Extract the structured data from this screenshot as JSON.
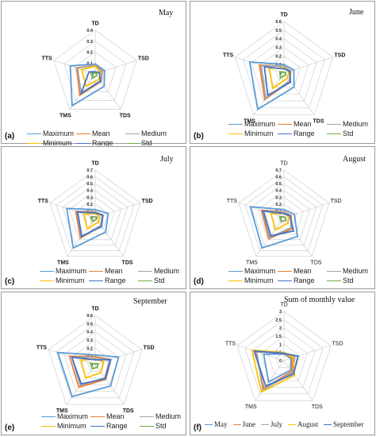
{
  "colors": {
    "Maximum": "#5b9bd5",
    "Mean": "#ed7d31",
    "Medium": "#a5a5a5",
    "Minimum": "#ffc000",
    "Range": "#4472c4",
    "Std": "#70ad47",
    "May": "#5b9bd5",
    "June": "#ed7d31",
    "July": "#a5a5a5",
    "August": "#ffc000",
    "September": "#4472c4"
  },
  "chart_data": [
    {
      "type": "radar",
      "panel_label": "(a)",
      "title": "May",
      "axes": [
        "TD",
        "TSD",
        "TDS",
        "TMS",
        "TTS"
      ],
      "rmax": 0.4,
      "ticks": [
        "0",
        "0.1",
        "0.2",
        "0.3",
        "0.4"
      ],
      "tick_bold": true,
      "series": [
        {
          "name": "Maximum",
          "values": [
            0.09,
            0.09,
            0.14,
            0.36,
            0.24
          ]
        },
        {
          "name": "Mean",
          "values": [
            0.08,
            0.07,
            0.09,
            0.24,
            0.18
          ]
        },
        {
          "name": "Medium",
          "values": [
            0.08,
            0.065,
            0.085,
            0.22,
            0.17
          ]
        },
        {
          "name": "Minimum",
          "values": [
            0.07,
            0.05,
            0.06,
            0.14,
            0.13
          ]
        },
        {
          "name": "Range",
          "values": [
            0.02,
            0.04,
            0.08,
            0.22,
            0.06
          ]
        },
        {
          "name": "Std",
          "values": [
            0.01,
            0.02,
            0.02,
            0.05,
            0.02
          ]
        }
      ]
    },
    {
      "type": "radar",
      "panel_label": "(b)",
      "title": "June",
      "axes": [
        "TD",
        "TSD",
        "TDS",
        "TMS",
        "TTS"
      ],
      "rmax": 0.6,
      "ticks": [
        "0",
        "0.1",
        "0.2",
        "0.3",
        "0.4",
        "0.5",
        "0.6"
      ],
      "tick_bold": true,
      "series": [
        {
          "name": "Maximum",
          "values": [
            0.1,
            0.12,
            0.2,
            0.52,
            0.42
          ]
        },
        {
          "name": "Mean",
          "values": [
            0.08,
            0.08,
            0.12,
            0.38,
            0.3
          ]
        },
        {
          "name": "Medium",
          "values": [
            0.08,
            0.075,
            0.11,
            0.36,
            0.28
          ]
        },
        {
          "name": "Minimum",
          "values": [
            0.06,
            0.06,
            0.07,
            0.22,
            0.18
          ]
        },
        {
          "name": "Range",
          "values": [
            0.05,
            0.07,
            0.13,
            0.32,
            0.24
          ]
        },
        {
          "name": "Std",
          "values": [
            0.01,
            0.02,
            0.03,
            0.07,
            0.05
          ]
        }
      ]
    },
    {
      "type": "radar",
      "panel_label": "(c)",
      "title": "July",
      "axes": [
        "TD",
        "TSD",
        "TDS",
        "TMS",
        "TTS"
      ],
      "rmax": 0.7,
      "ticks": [
        "0",
        "0.1",
        "0.2",
        "0.3",
        "0.4",
        "0.5",
        "0.6",
        "0.7"
      ],
      "tick_bold": true,
      "series": [
        {
          "name": "Maximum",
          "values": [
            0.12,
            0.2,
            0.26,
            0.55,
            0.44
          ]
        },
        {
          "name": "Mean",
          "values": [
            0.09,
            0.12,
            0.15,
            0.37,
            0.3
          ]
        },
        {
          "name": "Medium",
          "values": [
            0.085,
            0.11,
            0.14,
            0.35,
            0.28
          ]
        },
        {
          "name": "Minimum",
          "values": [
            0.06,
            0.07,
            0.08,
            0.2,
            0.17
          ]
        },
        {
          "name": "Range",
          "values": [
            0.07,
            0.12,
            0.16,
            0.34,
            0.27
          ]
        },
        {
          "name": "Std",
          "values": [
            0.01,
            0.03,
            0.03,
            0.07,
            0.05
          ]
        }
      ]
    },
    {
      "type": "radar",
      "panel_label": "(d)",
      "title": "August",
      "axes": [
        "TD",
        "TSD",
        "TDS",
        "TMS",
        "TTS"
      ],
      "rmax": 0.7,
      "ticks": [
        "0",
        "0.1",
        "0.2",
        "0.3",
        "0.4",
        "0.5",
        "0.6",
        "0.7"
      ],
      "tick_bold": false,
      "series": [
        {
          "name": "Maximum",
          "values": [
            0.12,
            0.16,
            0.34,
            0.55,
            0.52
          ]
        },
        {
          "name": "Mean",
          "values": [
            0.09,
            0.11,
            0.2,
            0.38,
            0.35
          ]
        },
        {
          "name": "Medium",
          "values": [
            0.085,
            0.1,
            0.18,
            0.36,
            0.33
          ]
        },
        {
          "name": "Minimum",
          "values": [
            0.06,
            0.07,
            0.1,
            0.22,
            0.2
          ]
        },
        {
          "name": "Range",
          "values": [
            0.06,
            0.09,
            0.24,
            0.33,
            0.32
          ]
        },
        {
          "name": "Std",
          "values": [
            0.01,
            0.02,
            0.05,
            0.07,
            0.06
          ]
        }
      ]
    },
    {
      "type": "radar",
      "panel_label": "(e)",
      "title": "September",
      "axes": [
        "TD",
        "TSD",
        "TDS",
        "TMS",
        "TTS"
      ],
      "rmax": 0.6,
      "ticks": [
        "0",
        "0.1",
        "0.2",
        "0.3",
        "0.4",
        "0.5",
        "0.6"
      ],
      "tick_bold": true,
      "series": [
        {
          "name": "Maximum",
          "values": [
            0.12,
            0.3,
            0.32,
            0.48,
            0.48
          ]
        },
        {
          "name": "Mean",
          "values": [
            0.1,
            0.2,
            0.22,
            0.34,
            0.33
          ]
        },
        {
          "name": "Medium",
          "values": [
            0.09,
            0.18,
            0.2,
            0.31,
            0.3
          ]
        },
        {
          "name": "Minimum",
          "values": [
            0.07,
            0.11,
            0.12,
            0.2,
            0.18
          ]
        },
        {
          "name": "Range",
          "values": [
            0.06,
            0.2,
            0.21,
            0.29,
            0.3
          ]
        },
        {
          "name": "Std",
          "values": [
            0.01,
            0.04,
            0.04,
            0.06,
            0.06
          ]
        }
      ]
    },
    {
      "type": "radar",
      "panel_label": "(f)",
      "title": "Sum of monthly value",
      "axes": [
        "TD",
        "TSD",
        "TDS",
        "TMS",
        "TTS"
      ],
      "rmax": 3,
      "ticks": [
        "0",
        "0.5",
        "1",
        "1.5",
        "2",
        "2.5",
        "3"
      ],
      "tick_bold": false,
      "series": [
        {
          "name": "May",
          "values": [
            0.4,
            0.45,
            0.7,
            1.6,
            1.3
          ]
        },
        {
          "name": "June",
          "values": [
            0.45,
            0.55,
            0.8,
            2.1,
            1.8
          ]
        },
        {
          "name": "July",
          "values": [
            0.5,
            0.7,
            0.9,
            2.2,
            1.75
          ]
        },
        {
          "name": "August",
          "values": [
            0.5,
            0.6,
            1.1,
            2.35,
            2.05
          ]
        },
        {
          "name": "September",
          "values": [
            0.45,
            0.9,
            1.0,
            1.9,
            1.9
          ]
        }
      ]
    }
  ]
}
